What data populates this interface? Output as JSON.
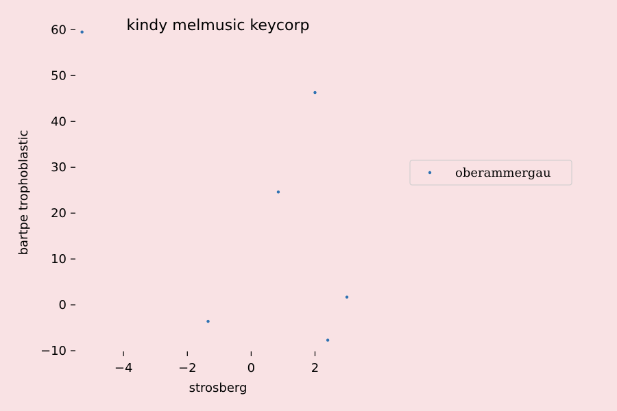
{
  "chart_data": {
    "type": "scatter",
    "title": "kindy melmusic keycorp",
    "xlabel": "strosberg",
    "ylabel": "bartpe trophoblastic",
    "xlim": [
      -5.4,
      3.3
    ],
    "ylim": [
      -11.5,
      62
    ],
    "xticks": [
      -4,
      -2,
      0,
      2
    ],
    "yticks": [
      -10,
      0,
      10,
      20,
      30,
      40,
      50,
      60
    ],
    "grid": false,
    "legend_position": "center-right",
    "colors": {
      "background": "#f9e2e4",
      "series": "#2f72b2"
    },
    "series": [
      {
        "name": "oberammergau",
        "points": [
          {
            "x": -5.3,
            "y": 59.5
          },
          {
            "x": 2.0,
            "y": 46.3
          },
          {
            "x": 0.85,
            "y": 24.6
          },
          {
            "x": 3.0,
            "y": 1.7
          },
          {
            "x": -1.35,
            "y": -3.6
          },
          {
            "x": 2.4,
            "y": -7.7
          }
        ]
      }
    ]
  }
}
